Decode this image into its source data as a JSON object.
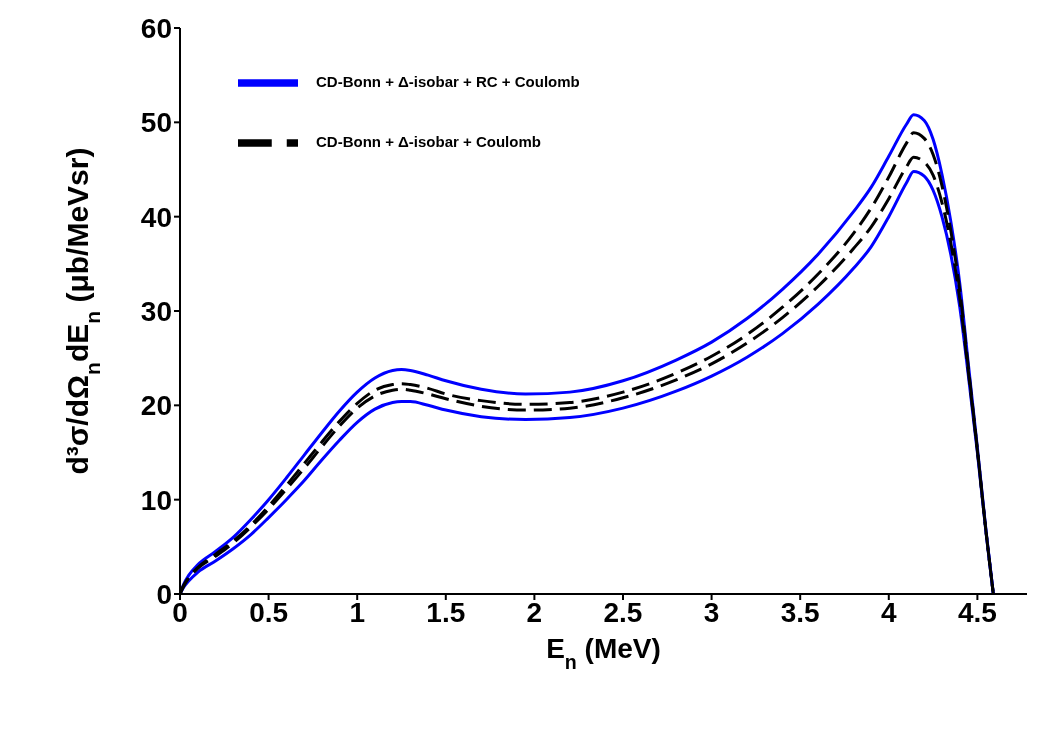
{
  "chart_data": {
    "type": "line",
    "x": [
      0,
      0.02,
      0.05,
      0.1,
      0.2,
      0.3,
      0.4,
      0.5,
      0.6,
      0.7,
      0.8,
      0.9,
      1.0,
      1.1,
      1.2,
      1.25,
      1.3,
      1.4,
      1.5,
      1.7,
      1.95,
      2.2,
      2.5,
      2.8,
      3.0,
      3.2,
      3.4,
      3.6,
      3.8,
      3.9,
      4.0,
      4.1,
      4.14,
      4.2,
      4.25,
      4.3,
      4.35,
      4.4,
      4.45,
      4.5,
      4.55,
      4.59
    ],
    "series": [
      {
        "name": "CD-Bonn + Δ-isobar + RC + Coulomb",
        "color": "#0000ff",
        "line_style": "solid",
        "values": [
          0,
          1.0,
          2.0,
          3.1,
          4.5,
          6.0,
          7.9,
          10.0,
          12.3,
          14.7,
          17.1,
          19.4,
          21.4,
          22.9,
          23.7,
          23.8,
          23.7,
          23.2,
          22.6,
          21.7,
          21.2,
          21.4,
          22.6,
          24.8,
          26.7,
          29.2,
          32.3,
          36.0,
          40.5,
          43.1,
          46.4,
          49.8,
          50.8,
          50.2,
          48.2,
          44.5,
          39.5,
          33.0,
          24.2,
          15.5,
          6.5,
          0
        ]
      },
      {
        "color": "#0000ff",
        "line_style": "solid",
        "values": [
          0,
          0.7,
          1.4,
          2.3,
          3.5,
          4.8,
          6.3,
          8.1,
          10.0,
          12.0,
          14.2,
          16.3,
          18.2,
          19.6,
          20.3,
          20.4,
          20.4,
          20.0,
          19.5,
          18.8,
          18.5,
          18.7,
          19.7,
          21.5,
          23.1,
          25.1,
          27.6,
          30.7,
          34.5,
          36.8,
          40.0,
          43.6,
          44.8,
          44.3,
          42.8,
          40.0,
          36.0,
          30.5,
          23.0,
          15.0,
          6.3,
          0
        ]
      },
      {
        "name": "CD-Bonn + Δ-isobar + Coulomb",
        "color": "#000000",
        "line_style": "dashed",
        "values": [
          0,
          0.9,
          1.8,
          2.8,
          4.2,
          5.6,
          7.3,
          9.3,
          11.5,
          13.8,
          16.1,
          18.3,
          20.2,
          21.6,
          22.2,
          22.3,
          22.2,
          21.8,
          21.2,
          20.5,
          20.1,
          20.3,
          21.4,
          23.4,
          25.2,
          27.5,
          30.4,
          33.9,
          38.2,
          40.9,
          44.2,
          47.8,
          48.9,
          48.3,
          46.6,
          43.3,
          38.5,
          32.3,
          23.8,
          15.3,
          6.4,
          0
        ]
      },
      {
        "color": "#000000",
        "line_style": "dashed",
        "values": [
          0,
          0.8,
          1.7,
          2.7,
          4.0,
          5.4,
          7.1,
          9.0,
          11.1,
          13.3,
          15.6,
          17.8,
          19.7,
          21.0,
          21.6,
          21.7,
          21.6,
          21.2,
          20.7,
          19.9,
          19.5,
          19.7,
          20.8,
          22.7,
          24.4,
          26.6,
          29.3,
          32.6,
          36.6,
          38.9,
          41.9,
          45.3,
          46.3,
          45.8,
          44.4,
          41.5,
          37.2,
          31.4,
          23.4,
          15.2,
          6.4,
          0
        ]
      }
    ],
    "xlim": [
      0,
      4.78
    ],
    "xticks": [
      0,
      0.5,
      1,
      1.5,
      2,
      2.5,
      3,
      3.5,
      4,
      4.5
    ],
    "ylim": [
      0,
      60
    ],
    "yticks": [
      0,
      10,
      20,
      30,
      40,
      50,
      60
    ],
    "xlabel": "E$_{n}$ (MeV)",
    "ylabel": "d³σ/dΩ$_{n}$dE$_{n}$ (μb/MeVsr)",
    "grid": false,
    "legend": "top left",
    "marker": "none"
  }
}
